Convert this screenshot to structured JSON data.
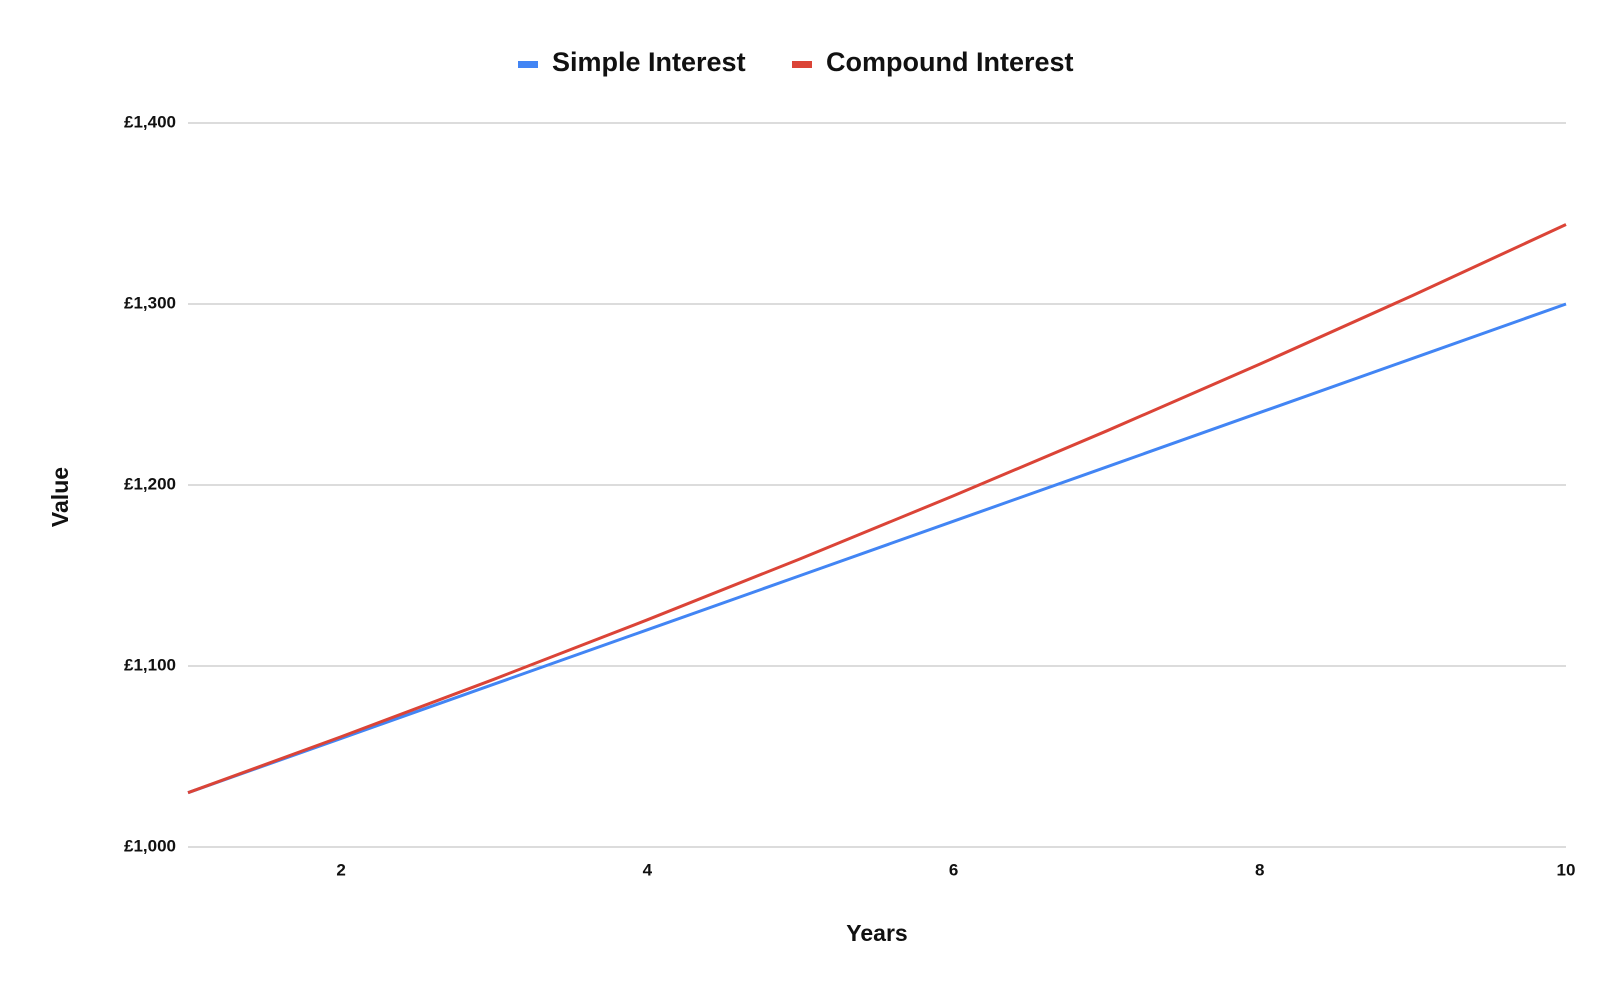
{
  "chart_data": {
    "type": "line",
    "x_label": "Years",
    "y_label": "Value",
    "x": [
      1,
      2,
      3,
      4,
      5,
      6,
      7,
      8,
      9,
      10
    ],
    "series": [
      {
        "name": "Simple Interest",
        "color": "#4285f4",
        "values": [
          1030,
          1060,
          1090,
          1120,
          1150,
          1180,
          1210,
          1240,
          1270,
          1300
        ]
      },
      {
        "name": "Compound Interest",
        "color": "#db4437",
        "values": [
          1030,
          1060.9,
          1092.73,
          1125.51,
          1159.27,
          1194.05,
          1229.87,
          1266.77,
          1304.77,
          1343.92
        ]
      }
    ],
    "xlim": [
      1,
      10
    ],
    "xticks": [
      2,
      4,
      6,
      8,
      10
    ],
    "ylim": [
      1000,
      1400
    ],
    "yticks": [
      {
        "value": 1000,
        "label": "£1,000"
      },
      {
        "value": 1100,
        "label": "£1,100"
      },
      {
        "value": 1200,
        "label": "£1,200"
      },
      {
        "value": 1300,
        "label": "£1,300"
      },
      {
        "value": 1400,
        "label": "£1,400"
      }
    ],
    "grid": true,
    "legend": "top"
  }
}
